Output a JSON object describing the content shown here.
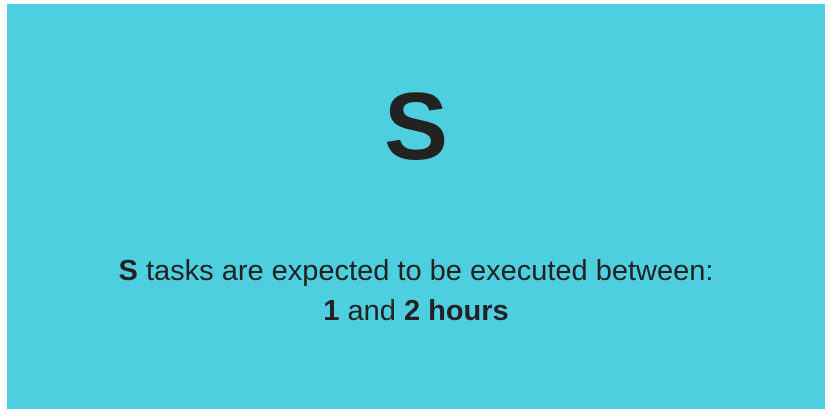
{
  "card": {
    "background": "#4ecfdf",
    "size_code": "S",
    "description": {
      "size_code": "S",
      "text_before_range": " tasks are expected to be executed between:",
      "range_min": "1",
      "range_joiner": " and ",
      "range_max": "2 hours"
    }
  }
}
